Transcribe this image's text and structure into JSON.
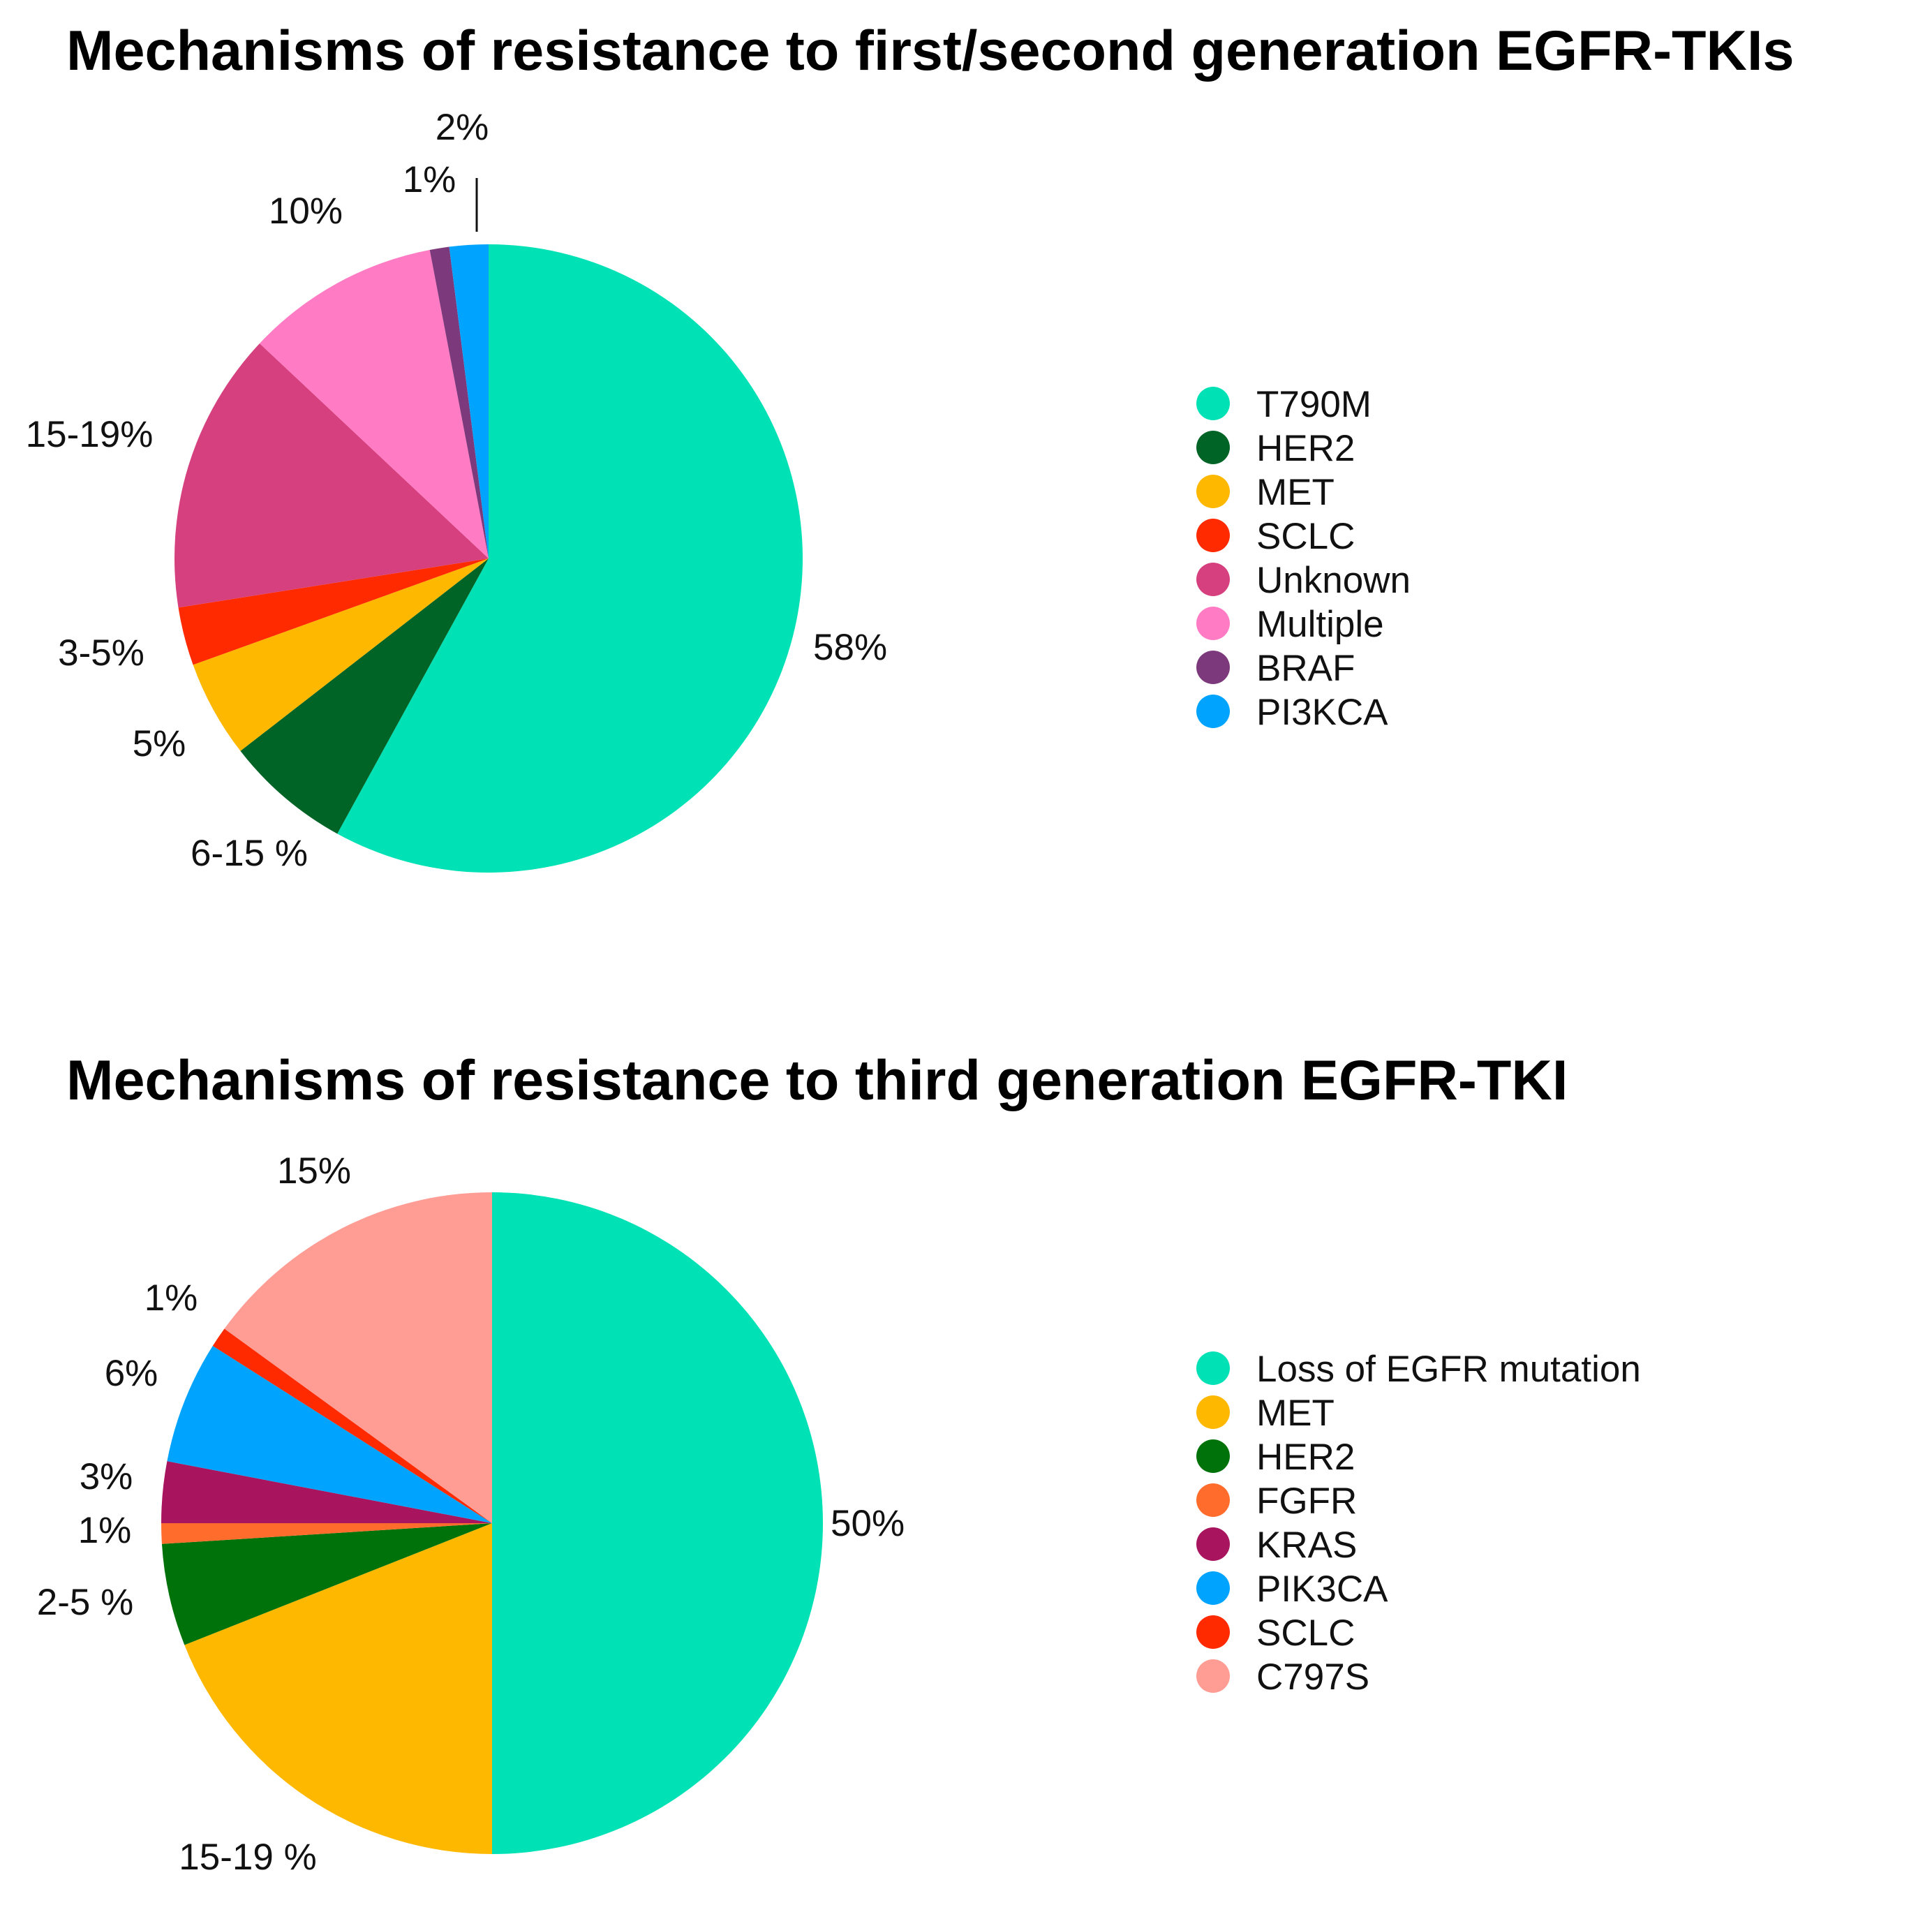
{
  "chart_data": [
    {
      "type": "pie",
      "title": "Mechanisms of resistance to first/second generation EGFR-TKIs",
      "legend_position": "right",
      "start_angle_deg": 0,
      "direction": "clockwise",
      "slices": [
        {
          "name": "T790M",
          "value": 58,
          "label": "58%",
          "color": "#00E2B5"
        },
        {
          "name": "HER2",
          "value": 6.5,
          "label": "6-15 %",
          "color": "#006426"
        },
        {
          "name": "MET",
          "value": 5,
          "label": "5%",
          "color": "#FFB800"
        },
        {
          "name": "SCLC",
          "value": 3,
          "label": "3-5%",
          "color": "#FF2A00"
        },
        {
          "name": "Unknown",
          "value": 14.5,
          "label": "15-19%",
          "color": "#D6407E"
        },
        {
          "name": "Multiple",
          "value": 10,
          "label": "10%",
          "color": "#FF7CC5"
        },
        {
          "name": "BRAF",
          "value": 1,
          "label": "1%",
          "color": "#7C3A7C"
        },
        {
          "name": "PI3KCA",
          "value": 2,
          "label": "2%",
          "color": "#00A4FF"
        }
      ]
    },
    {
      "type": "pie",
      "title": "Mechanisms of resistance to third generation EGFR-TKI",
      "legend_position": "right",
      "start_angle_deg": 0,
      "direction": "clockwise",
      "slices": [
        {
          "name": "Loss of EGFR mutation",
          "value": 50,
          "label": "50%",
          "color": "#00E2B5"
        },
        {
          "name": "MET",
          "value": 19,
          "label": "15-19 %",
          "color": "#FFB800"
        },
        {
          "name": "HER2",
          "value": 5,
          "label": "2-5 %",
          "color": "#00720A"
        },
        {
          "name": "FGFR",
          "value": 1,
          "label": "1%",
          "color": "#FF6C2C"
        },
        {
          "name": "KRAS",
          "value": 3,
          "label": "3%",
          "color": "#A8155E"
        },
        {
          "name": "PIK3CA",
          "value": 6,
          "label": "6%",
          "color": "#00A4FF"
        },
        {
          "name": "SCLC",
          "value": 1,
          "label": "1%",
          "color": "#FF2A00"
        },
        {
          "name": "C797S",
          "value": 15,
          "label": "15%",
          "color": "#FF9C94"
        }
      ]
    }
  ]
}
